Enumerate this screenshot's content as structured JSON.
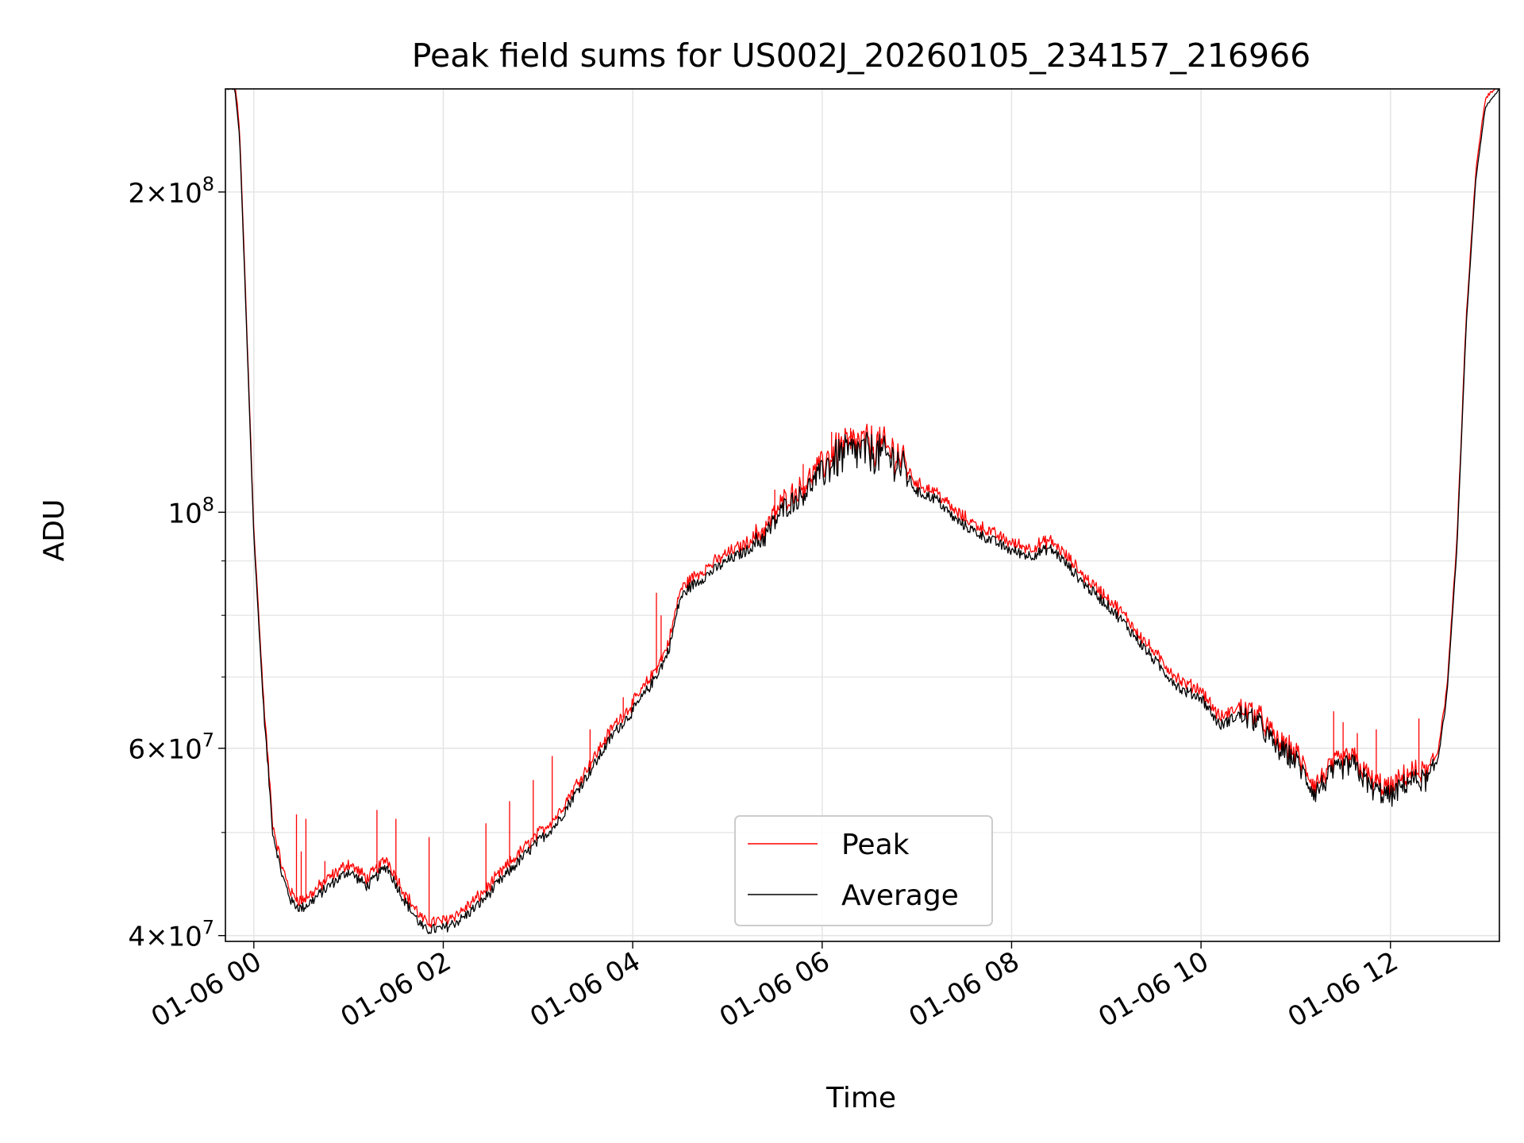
{
  "chart_data": {
    "type": "line",
    "title": "Peak field sums for US002J_20260105_234157_216966",
    "xlabel": "Time",
    "ylabel": "ADU",
    "yscale": "log",
    "ylim": [
      39500000,
      250000000
    ],
    "xlim_hours": [
      -0.3,
      13.15
    ],
    "grid": true,
    "legend_position": "lower center",
    "x_tick_labels": [
      "01-06 00",
      "01-06 02",
      "01-06 04",
      "01-06 06",
      "01-06 08",
      "01-06 10",
      "01-06 12"
    ],
    "x_tick_hours": [
      0,
      2,
      4,
      6,
      8,
      10,
      12
    ],
    "y_major_ticks": [
      {
        "value": 40000000,
        "mantissa": "4",
        "exp": "7"
      },
      {
        "value": 60000000,
        "mantissa": "6",
        "exp": "7"
      },
      {
        "value": 100000000,
        "mantissa": "",
        "exp": "8"
      },
      {
        "value": 200000000,
        "mantissa": "2",
        "exp": "8"
      }
    ],
    "y_minor_ticks": [
      50000000,
      70000000,
      80000000,
      90000000
    ],
    "series": [
      {
        "name": "Peak",
        "color": "#ff0000"
      },
      {
        "name": "Average",
        "color": "#000000"
      }
    ],
    "average_x_hours": [
      -0.3,
      -0.2,
      -0.15,
      -0.1,
      0.0,
      0.1,
      0.2,
      0.3,
      0.4,
      0.5,
      0.6,
      0.8,
      1.0,
      1.2,
      1.4,
      1.6,
      1.8,
      2.0,
      2.2,
      2.4,
      2.6,
      2.8,
      3.0,
      3.2,
      3.4,
      3.6,
      3.8,
      4.0,
      4.2,
      4.35,
      4.4,
      4.5,
      4.6,
      4.8,
      5.0,
      5.2,
      5.4,
      5.6,
      5.8,
      6.0,
      6.2,
      6.4,
      6.6,
      6.8,
      7.0,
      7.2,
      7.4,
      7.6,
      7.8,
      8.0,
      8.2,
      8.4,
      8.5,
      8.8,
      9.0,
      9.2,
      9.4,
      9.6,
      9.8,
      10.0,
      10.2,
      10.4,
      10.6,
      10.8,
      11.0,
      11.2,
      11.4,
      11.6,
      11.8,
      12.0,
      12.2,
      12.4,
      12.5,
      12.6,
      12.7,
      12.8,
      12.9,
      13.0,
      13.15
    ],
    "average_y": [
      250000000,
      250000000,
      225000000,
      170000000,
      95000000,
      66000000,
      50000000,
      45500000,
      43000000,
      42400000,
      43000000,
      44600000,
      46000000,
      44500000,
      46500000,
      43000000,
      40500000,
      40600000,
      41500000,
      43000000,
      45000000,
      47000000,
      49000000,
      51000000,
      54500000,
      58000000,
      62000000,
      65000000,
      69000000,
      73000000,
      75500000,
      83000000,
      85000000,
      87500000,
      90000000,
      92000000,
      95000000,
      101000000,
      104000000,
      109500000,
      113000000,
      114000000,
      113500000,
      111500000,
      104500000,
      103000000,
      98500000,
      96000000,
      94000000,
      92000000,
      91000000,
      92500000,
      91000000,
      85000000,
      82000000,
      78500000,
      74500000,
      71000000,
      68000000,
      67000000,
      63000000,
      64500000,
      63500000,
      60000000,
      58500000,
      54500000,
      57000000,
      58000000,
      55000000,
      54000000,
      56000000,
      56000000,
      58500000,
      68000000,
      92000000,
      150000000,
      205000000,
      240000000,
      250000000
    ],
    "peak_spikes": [
      {
        "x": 0.45,
        "y": 52000000
      },
      {
        "x": 0.5,
        "y": 48000000
      },
      {
        "x": 0.55,
        "y": 51500000
      },
      {
        "x": 0.75,
        "y": 47000000
      },
      {
        "x": 1.3,
        "y": 52500000
      },
      {
        "x": 1.5,
        "y": 51500000
      },
      {
        "x": 1.85,
        "y": 49500000
      },
      {
        "x": 2.45,
        "y": 51000000
      },
      {
        "x": 2.7,
        "y": 53500000
      },
      {
        "x": 2.95,
        "y": 56000000
      },
      {
        "x": 3.15,
        "y": 59000000
      },
      {
        "x": 3.55,
        "y": 62500000
      },
      {
        "x": 3.9,
        "y": 67000000
      },
      {
        "x": 4.25,
        "y": 84000000
      },
      {
        "x": 4.3,
        "y": 80000000
      },
      {
        "x": 4.9,
        "y": 90500000
      },
      {
        "x": 5.3,
        "y": 97000000
      },
      {
        "x": 5.5,
        "y": 105000000
      },
      {
        "x": 5.8,
        "y": 111000000
      },
      {
        "x": 6.1,
        "y": 119000000
      },
      {
        "x": 6.3,
        "y": 120000000
      },
      {
        "x": 11.4,
        "y": 65000000
      },
      {
        "x": 11.5,
        "y": 63500000
      },
      {
        "x": 11.65,
        "y": 62000000
      },
      {
        "x": 11.85,
        "y": 62500000
      },
      {
        "x": 12.3,
        "y": 64000000
      }
    ]
  }
}
